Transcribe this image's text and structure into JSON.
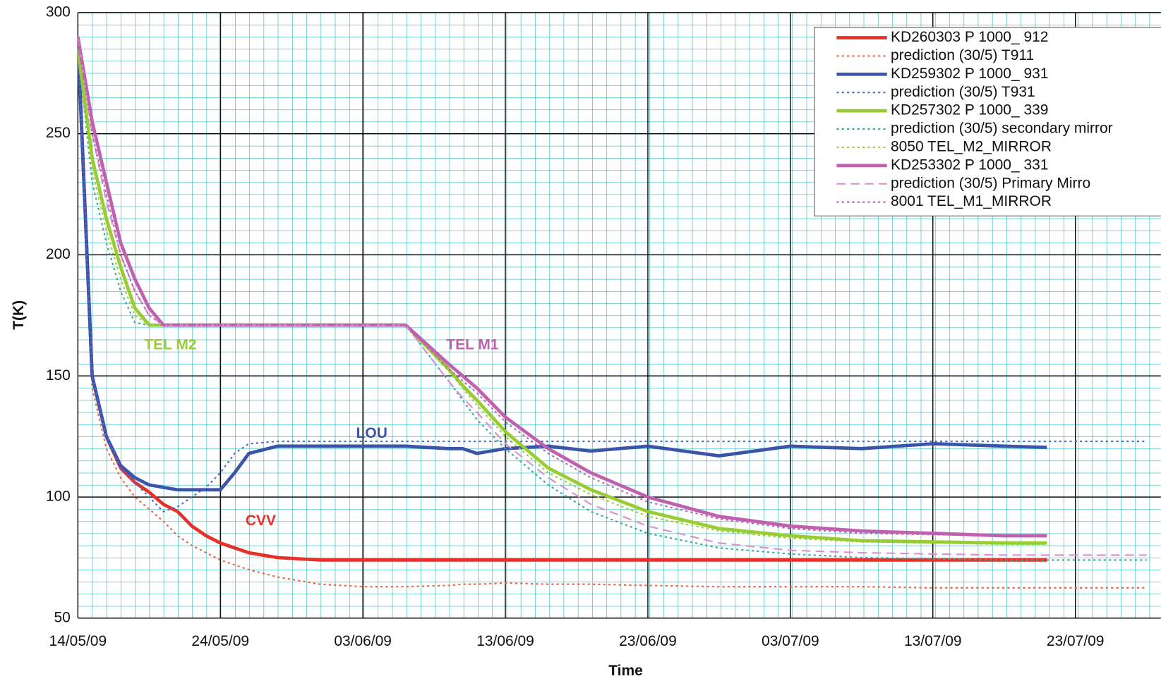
{
  "chart_data": {
    "type": "line",
    "x_label": "Time",
    "y_label": "T(K)",
    "x": [
      "14/05/09",
      "15/05/09",
      "16/05/09",
      "17/05/09",
      "18/05/09",
      "19/05/09",
      "20/05/09",
      "21/05/09",
      "22/05/09",
      "23/05/09",
      "24/05/09",
      "25/05/09",
      "26/05/09",
      "28/05/09",
      "31/05/09",
      "03/06/09",
      "06/06/09",
      "09/06/09",
      "10/06/09",
      "11/06/09",
      "13/06/09",
      "16/06/09",
      "19/06/09",
      "23/06/09",
      "28/06/09",
      "03/07/09",
      "08/07/09",
      "13/07/09",
      "18/07/09",
      "21/07/09",
      "25/07/09",
      "28/07/09"
    ],
    "xlim": [
      "14/05/09",
      "29/07/09"
    ],
    "xticks": [
      "14/05/09",
      "24/05/09",
      "03/06/09",
      "13/06/09",
      "23/06/09",
      "03/07/09",
      "13/07/09",
      "23/07/09"
    ],
    "ylim": [
      50,
      300
    ],
    "yticks": [
      50,
      100,
      150,
      200,
      250,
      300
    ],
    "grid": true,
    "legend": "upper right",
    "series": [
      {
        "name": "KD260303 P 1000_ 912",
        "color": "#e8302a",
        "style": "solid",
        "values": [
          290,
          150,
          125,
          112,
          106,
          102,
          97,
          94,
          88,
          84,
          81,
          79,
          77,
          75,
          74,
          74,
          74,
          74,
          74,
          74,
          74,
          74,
          74,
          74,
          74,
          74,
          74,
          74,
          74,
          74,
          null,
          null
        ]
      },
      {
        "name": "prediction (30/5) T911",
        "color": "#f06040",
        "style": "dotted",
        "values": [
          290,
          145,
          120,
          108,
          100,
          95,
          90,
          84,
          80,
          77,
          74,
          72,
          70,
          67,
          64,
          63,
          63,
          63.5,
          64,
          64,
          64.5,
          64,
          64,
          63.5,
          63,
          63,
          63,
          62.5,
          62.5,
          62.5,
          62.5,
          62.5
        ]
      },
      {
        "name": "KD259302 P 1000_ 931",
        "color": "#3a55a8",
        "style": "solid",
        "values": [
          288,
          150,
          125,
          113,
          108,
          105,
          104,
          103,
          103,
          103,
          103,
          110,
          118,
          121,
          121,
          121,
          121,
          120,
          120,
          118,
          120,
          121,
          119,
          121,
          117,
          121,
          120,
          122,
          121,
          120.5,
          null,
          null
        ]
      },
      {
        "name": "prediction (30/5) T931",
        "color": "#4a6ad0",
        "style": "dotted",
        "values": [
          288,
          150,
          125,
          112,
          106,
          100,
          94,
          96,
          100,
          104,
          110,
          118,
          122,
          123,
          123,
          123,
          123,
          123,
          123,
          123,
          123,
          123,
          123,
          123,
          123,
          123,
          123,
          123,
          123,
          123,
          123,
          123
        ]
      },
      {
        "name": "KD257302 P 1000_ 339",
        "color": "#99cc33",
        "style": "solid",
        "values": [
          285,
          240,
          215,
          195,
          178,
          171,
          171,
          171,
          171,
          171,
          171,
          171,
          171,
          171,
          171,
          171,
          171,
          153,
          146,
          140,
          127,
          112,
          103,
          94,
          87,
          84,
          82,
          81.5,
          81,
          81,
          null,
          null
        ]
      },
      {
        "name": "prediction (30/5) secondary mirror",
        "color": "#33aa99",
        "style": "dotted",
        "values": [
          285,
          230,
          205,
          185,
          172,
          171,
          171,
          171,
          171,
          171,
          171,
          171,
          171,
          171,
          171,
          171,
          171,
          148,
          140,
          132,
          120,
          105,
          94,
          85,
          79,
          76.5,
          75,
          74.5,
          74,
          74,
          74,
          74
        ]
      },
      {
        "name": "8050 TEL_M2_MIRROR",
        "color": "#99cc33",
        "style": "dotted",
        "values": [
          285,
          235,
          210,
          190,
          175,
          171,
          171,
          171,
          171,
          171,
          171,
          171,
          171,
          171,
          171,
          171,
          171,
          152,
          145,
          138,
          125,
          110,
          101,
          92,
          86,
          83,
          81.5,
          81,
          80.5,
          80.5,
          null,
          null
        ]
      },
      {
        "name": "KD253302 P 1000_ 331",
        "color": "#c060b0",
        "style": "solid",
        "values": [
          290,
          255,
          230,
          205,
          190,
          178,
          171,
          171,
          171,
          171,
          171,
          171,
          171,
          171,
          171,
          171,
          171,
          155,
          150,
          145,
          133,
          120,
          110,
          100,
          92,
          88,
          86,
          85,
          84,
          84,
          null,
          null
        ]
      },
      {
        "name": "prediction (30/5) Primary Mirro",
        "color": "#d890d0",
        "style": "dashed",
        "values": [
          290,
          250,
          222,
          200,
          185,
          175,
          171,
          171,
          171,
          171,
          171,
          171,
          171,
          171,
          171,
          171,
          171,
          148,
          141,
          135,
          122,
          108,
          97,
          88,
          81,
          78,
          77,
          76.5,
          76,
          76,
          76,
          76
        ]
      },
      {
        "name": "8001 TEL_M1_MIRROR",
        "color": "#c060b0",
        "style": "dotted",
        "values": [
          290,
          250,
          225,
          200,
          185,
          175,
          171,
          171,
          171,
          171,
          171,
          171,
          171,
          171,
          171,
          171,
          171,
          153,
          148,
          143,
          131,
          118,
          108,
          98,
          91,
          87,
          85,
          84.5,
          84,
          84,
          null,
          null
        ]
      }
    ],
    "annotations": [
      {
        "text": "TEL M2",
        "color": "#99cc33"
      },
      {
        "text": "TEL M1",
        "color": "#c060b0"
      },
      {
        "text": "LOU",
        "color": "#3a55a8"
      },
      {
        "text": "CVV",
        "color": "#e8302a"
      }
    ]
  }
}
